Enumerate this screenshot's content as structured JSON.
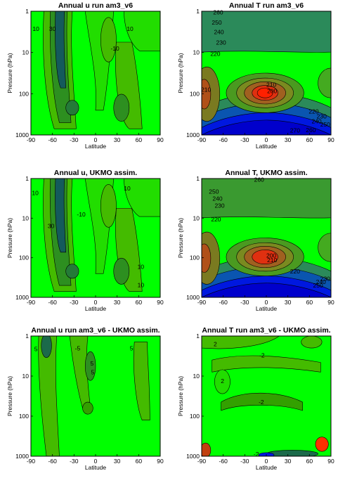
{
  "chart_data": [
    {
      "type": "contour",
      "title": "Annual u run am3_v6",
      "xlabel": "Latitude",
      "ylabel": "Pressure (hPa)",
      "x_ticks": [
        "-90",
        "-60",
        "-30",
        "0",
        "30",
        "60",
        "90"
      ],
      "y_ticks": [
        "1",
        "10",
        "100",
        "1000"
      ],
      "xlim": [
        -90,
        90
      ],
      "ylim": [
        1000,
        1
      ],
      "y_scale": "log",
      "levels": [
        {
          "text": "30",
          "lat": -60,
          "p": 3
        },
        {
          "text": "10",
          "lat": -83,
          "p": 3
        },
        {
          "text": "-10",
          "lat": 27,
          "p": 9
        },
        {
          "text": "10",
          "lat": 48,
          "p": 3
        }
      ]
    },
    {
      "type": "contour",
      "title": "Annual T run am3_v6",
      "xlabel": "Latitude",
      "ylabel": "Pressure (hPa)",
      "x_ticks": [
        "-90",
        "-60",
        "-30",
        "0",
        "30",
        "60",
        "90"
      ],
      "y_ticks": [
        "1",
        "10",
        "100",
        "1000"
      ],
      "xlim": [
        -90,
        90
      ],
      "ylim": [
        1000,
        1
      ],
      "y_scale": "log",
      "levels": [
        {
          "text": "260",
          "lat": -67,
          "p": 1.2
        },
        {
          "text": "250",
          "lat": -69,
          "p": 2.1
        },
        {
          "text": "240",
          "lat": -66,
          "p": 3.6
        },
        {
          "text": "230",
          "lat": -63,
          "p": 6.4
        },
        {
          "text": "220",
          "lat": -71,
          "p": 12
        },
        {
          "text": "210",
          "lat": -84,
          "p": 90
        },
        {
          "text": "210",
          "lat": 7,
          "p": 68
        },
        {
          "text": "200",
          "lat": 8,
          "p": 96
        },
        {
          "text": "220",
          "lat": 66,
          "p": 300
        },
        {
          "text": "230",
          "lat": 77,
          "p": 400
        },
        {
          "text": "240",
          "lat": 70,
          "p": 520
        },
        {
          "text": "250",
          "lat": 82,
          "p": 620
        },
        {
          "text": "260",
          "lat": 62,
          "p": 860
        },
        {
          "text": "270",
          "lat": 40,
          "p": 880
        }
      ]
    },
    {
      "type": "contour",
      "title": "Annual u, UKMO assim.",
      "xlabel": "Latitude",
      "ylabel": "Pressure (hPa)",
      "x_ticks": [
        "-90",
        "-60",
        "-30",
        "0",
        "30",
        "60",
        "90"
      ],
      "y_ticks": [
        "1",
        "10",
        "100",
        "1000"
      ],
      "xlim": [
        -90,
        90
      ],
      "ylim": [
        1000,
        1
      ],
      "y_scale": "log",
      "levels": [
        {
          "text": "10",
          "lat": -84,
          "p": 2.6
        },
        {
          "text": "30",
          "lat": -62,
          "p": 18
        },
        {
          "text": "-10",
          "lat": -20,
          "p": 9
        },
        {
          "text": "10",
          "lat": 44,
          "p": 2
        },
        {
          "text": "10",
          "lat": 63,
          "p": 190
        },
        {
          "text": "10",
          "lat": 63,
          "p": 550
        }
      ]
    },
    {
      "type": "contour",
      "title": "Annual T, UKMO assim.",
      "xlabel": "Latitude",
      "ylabel": "Pressure (hPa)",
      "x_ticks": [
        "-90",
        "-60",
        "-30",
        "0",
        "30",
        "60",
        "90"
      ],
      "y_ticks": [
        "1",
        "10",
        "100",
        "1000"
      ],
      "xlim": [
        -90,
        90
      ],
      "ylim": [
        1000,
        1
      ],
      "y_scale": "log",
      "levels": [
        {
          "text": "260",
          "lat": -10,
          "p": 1.2
        },
        {
          "text": "250",
          "lat": -73,
          "p": 2.4
        },
        {
          "text": "240",
          "lat": -68,
          "p": 3.6
        },
        {
          "text": "230",
          "lat": -65,
          "p": 5.5
        },
        {
          "text": "220",
          "lat": -70,
          "p": 12
        },
        {
          "text": "200",
          "lat": 7,
          "p": 100
        },
        {
          "text": "210",
          "lat": 8,
          "p": 130
        },
        {
          "text": "220",
          "lat": 40,
          "p": 250
        },
        {
          "text": "230",
          "lat": 82,
          "p": 380
        },
        {
          "text": "240",
          "lat": 76,
          "p": 460
        },
        {
          "text": "250",
          "lat": 72,
          "p": 560
        }
      ]
    },
    {
      "type": "contour",
      "title": "Annual u run am3_v6 - UKMO assim.",
      "xlabel": "Latitude",
      "ylabel": "Pressure (hPa)",
      "x_ticks": [
        "-90",
        "-60",
        "-30",
        "0",
        "30",
        "60",
        "90"
      ],
      "y_ticks": [
        "1",
        "10",
        "100",
        "1000"
      ],
      "xlim": [
        -90,
        90
      ],
      "ylim": [
        1000,
        1
      ],
      "y_scale": "log",
      "levels": [
        {
          "text": "5",
          "lat": -83,
          "p": 2.4
        },
        {
          "text": "-5",
          "lat": -25,
          "p": 2.3
        },
        {
          "text": "5",
          "lat": -5,
          "p": 5.5
        },
        {
          "text": "5",
          "lat": -4,
          "p": 9
        },
        {
          "text": "5",
          "lat": 50,
          "p": 2.3
        }
      ]
    },
    {
      "type": "contour",
      "title": "Annual T run am3_v6 - UKMO assim.",
      "xlabel": "Latitude",
      "ylabel": "Pressure (hPa)",
      "x_ticks": [
        "-90",
        "-60",
        "-30",
        "0",
        "30",
        "60",
        "90"
      ],
      "y_ticks": [
        "1",
        "10",
        "100",
        "1000"
      ],
      "xlim": [
        -90,
        90
      ],
      "ylim": [
        1000,
        1
      ],
      "y_scale": "log",
      "levels": [
        {
          "text": "2",
          "lat": -71,
          "p": 1.8
        },
        {
          "text": "-2",
          "lat": -6,
          "p": 3.4
        },
        {
          "text": "2",
          "lat": -61,
          "p": 15
        },
        {
          "text": "-2",
          "lat": -7,
          "p": 50
        },
        {
          "text": "-2",
          "lat": -14,
          "p": 1000
        }
      ]
    }
  ]
}
